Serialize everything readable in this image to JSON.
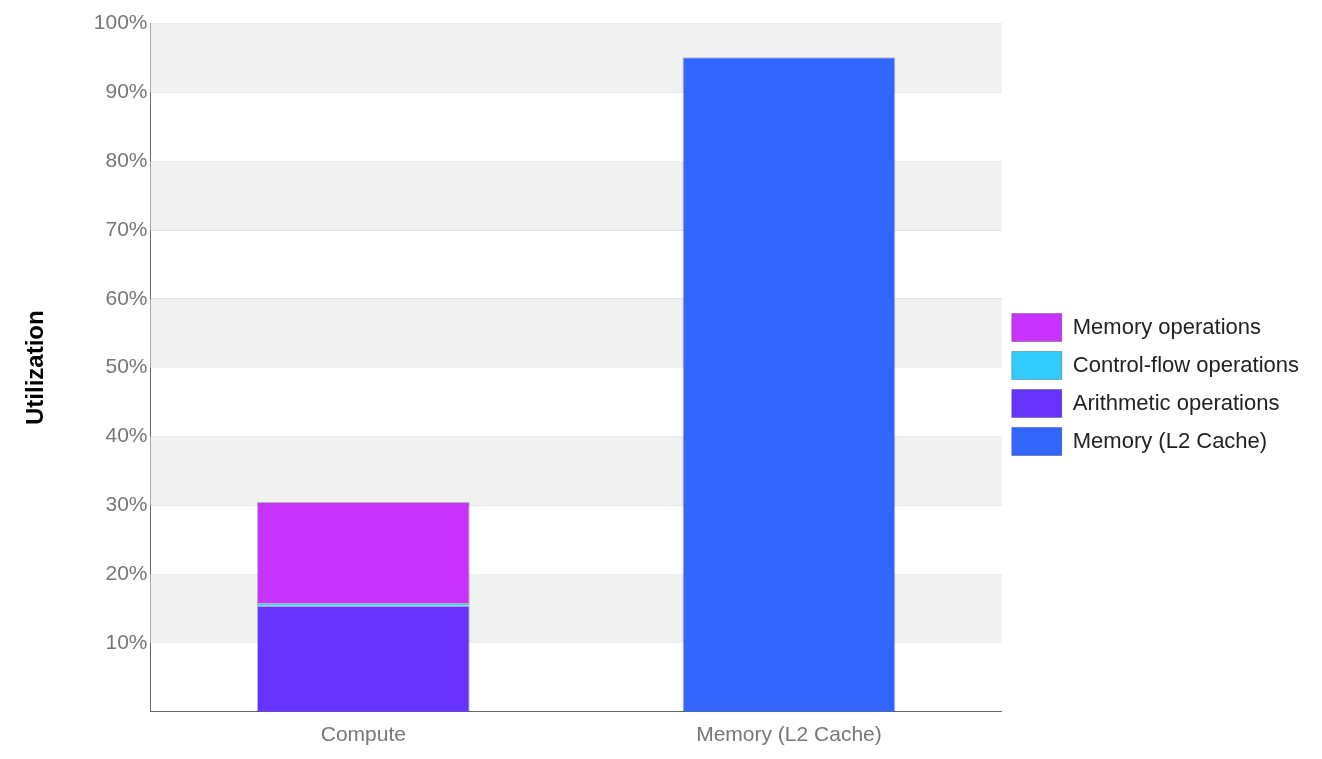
{
  "chart_data": {
    "type": "bar",
    "ylabel": "Utilization",
    "categories": [
      "Compute",
      "Memory (L2 Cache)"
    ],
    "stacked": true,
    "series": [
      {
        "name": "Arithmetic operations",
        "color": "#6633ff",
        "values": [
          15.4,
          null
        ]
      },
      {
        "name": "Control-flow operations",
        "color": "#33ccff",
        "values": [
          0.4,
          null
        ]
      },
      {
        "name": "Memory operations",
        "color": "#c733ff",
        "values": [
          14.7,
          null
        ]
      },
      {
        "name": "Memory (L2 Cache)",
        "color": "#3366ff",
        "values": [
          null,
          95.1
        ]
      }
    ],
    "ylim": [
      0,
      100
    ],
    "yticks": [
      {
        "value": 10,
        "label": "10%"
      },
      {
        "value": 20,
        "label": "20%"
      },
      {
        "value": 30,
        "label": "30%"
      },
      {
        "value": 40,
        "label": "40%"
      },
      {
        "value": 50,
        "label": "50%"
      },
      {
        "value": 60,
        "label": "60%"
      },
      {
        "value": 70,
        "label": "70%"
      },
      {
        "value": 80,
        "label": "80%"
      },
      {
        "value": 90,
        "label": "90%"
      },
      {
        "value": 100,
        "label": "100%"
      }
    ],
    "grid": "y",
    "legend": "right"
  }
}
